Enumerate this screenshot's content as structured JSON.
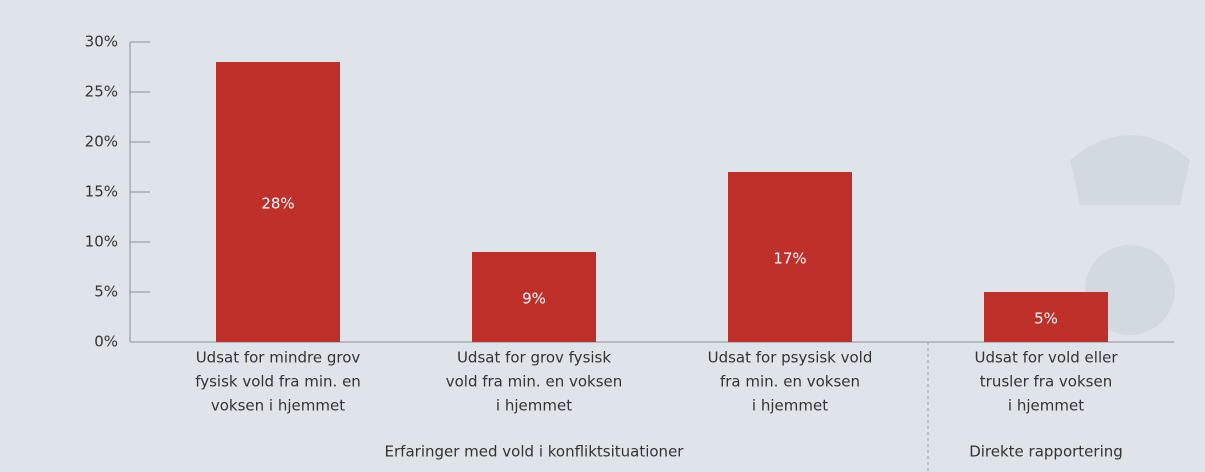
{
  "chart_data": {
    "type": "bar",
    "categories": [
      [
        "Udsat for mindre grov",
        "fysisk vold fra min. en",
        "voksen i hjemmet"
      ],
      [
        "Udsat for grov fysisk",
        "vold fra min. en voksen",
        "i hjemmet"
      ],
      [
        "Udsat for psysisk vold",
        "fra min. en voksen",
        "i hjemmet"
      ],
      [
        "Udsat for vold eller",
        "trusler fra voksen",
        "i hjemmet"
      ]
    ],
    "values": [
      28,
      9,
      17,
      5
    ],
    "value_labels": [
      "28%",
      "9%",
      "17%",
      "5%"
    ],
    "color": "#c0302a",
    "ylim": [
      0,
      30
    ],
    "yticks": [
      {
        "value": 0,
        "label": "0%"
      },
      {
        "value": 5,
        "label": "5%"
      },
      {
        "value": 10,
        "label": "10%"
      },
      {
        "value": 15,
        "label": "15%"
      },
      {
        "value": 20,
        "label": "20%"
      },
      {
        "value": 25,
        "label": "25%"
      },
      {
        "value": 30,
        "label": "30%"
      }
    ],
    "groups": [
      {
        "label": "Erfaringer med vold i konfliktsituationer",
        "categories": [
          0,
          1,
          2
        ]
      },
      {
        "label": "Direkte rapportering",
        "categories": [
          3
        ]
      }
    ]
  }
}
